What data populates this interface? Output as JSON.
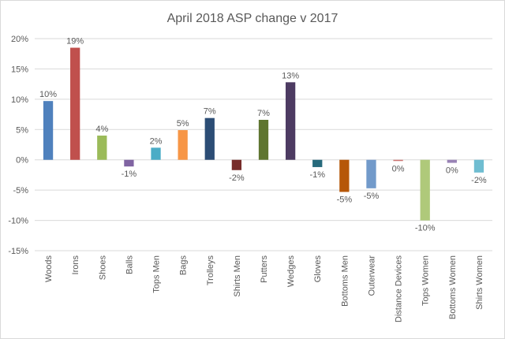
{
  "chart_data": {
    "type": "bar",
    "title": "April 2018 ASP change v 2017",
    "xlabel": "",
    "ylabel": "",
    "ylim": [
      -15,
      20
    ],
    "yticks": [
      -15,
      -10,
      -5,
      0,
      5,
      10,
      15,
      20
    ],
    "ytick_format": "%",
    "grid": true,
    "legend": "none",
    "categories": [
      "Woods",
      "Irons",
      "Shoes",
      "Balls",
      "Tops Men",
      "Bags",
      "Trolleys",
      "Shirts Men",
      "Putters",
      "Wedges",
      "Gloves",
      "Bottoms Men",
      "Outerwear",
      "Distance Devices",
      "Tops Women",
      "Bottoms Women",
      "Shirts Women"
    ],
    "values": [
      9.7,
      18.5,
      4.0,
      -1.1,
      2.0,
      4.9,
      6.9,
      -1.7,
      6.6,
      12.8,
      -1.2,
      -5.3,
      -4.7,
      -0.2,
      -10.0,
      -0.5,
      -2.1
    ],
    "data_labels": [
      "10%",
      "19%",
      "4%",
      "-1%",
      "2%",
      "5%",
      "7%",
      "-2%",
      "7%",
      "13%",
      "-1%",
      "-5%",
      "-5%",
      "0%",
      "-10%",
      "0%",
      "-2%"
    ],
    "colors": [
      "#4f81bd",
      "#c0504d",
      "#9bbb59",
      "#8064a2",
      "#4bacc6",
      "#f79646",
      "#2c4d75",
      "#772c2a",
      "#5f7530",
      "#4d3b62",
      "#276a7c",
      "#b65708",
      "#729aca",
      "#cd7371",
      "#afc97a",
      "#9983b5",
      "#6fbdd1"
    ]
  }
}
